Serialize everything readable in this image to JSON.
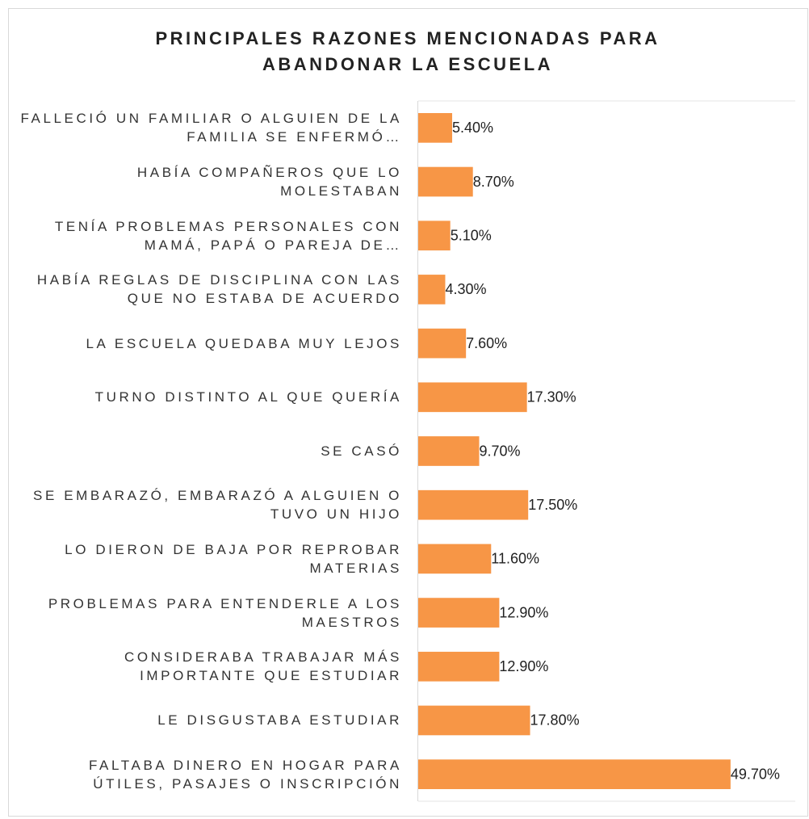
{
  "chart_data": {
    "type": "bar",
    "orientation": "horizontal",
    "title": "PRINCIPALES RAZONES MENCIONADAS PARA ABANDONAR LA ESCUELA",
    "categories": [
      "FALLECIÓ UN FAMILIAR O ALGUIEN DE LA FAMILIA SE ENFERMÓ…",
      "HABÍA COMPAÑEROS QUE LO MOLESTABAN",
      "TENÍA PROBLEMAS PERSONALES CON MAMÁ, PAPÁ O PAREJA DE…",
      "HABÍA REGLAS DE DISCIPLINA CON LAS QUE NO ESTABA DE ACUERDO",
      "LA ESCUELA QUEDABA MUY LEJOS",
      "TURNO DISTINTO AL QUE QUERÍA",
      "SE CASÓ",
      "SE EMBARAZÓ, EMBARAZÓ A ALGUIEN O TUVO UN HIJO",
      "LO DIERON DE BAJA POR REPROBAR MATERIAS",
      "PROBLEMAS PARA ENTENDERLE A LOS MAESTROS",
      "CONSIDERABA TRABAJAR MÁS IMPORTANTE QUE ESTUDIAR",
      "LE DISGUSTABA ESTUDIAR",
      "FALTABA DINERO EN HOGAR PARA ÚTILES, PASAJES O INSCRIPCIÓN"
    ],
    "values": [
      5.4,
      8.7,
      5.1,
      4.3,
      7.6,
      17.3,
      9.7,
      17.5,
      11.6,
      12.9,
      12.9,
      17.8,
      49.7
    ],
    "value_labels": [
      "5.40%",
      "8.70%",
      "5.10%",
      "4.30%",
      "7.60%",
      "17.30%",
      "9.70%",
      "17.50%",
      "11.60%",
      "12.90%",
      "12.90%",
      "17.80%",
      "49.70%"
    ],
    "color": "#f79646",
    "xlim": [
      0,
      60
    ]
  }
}
